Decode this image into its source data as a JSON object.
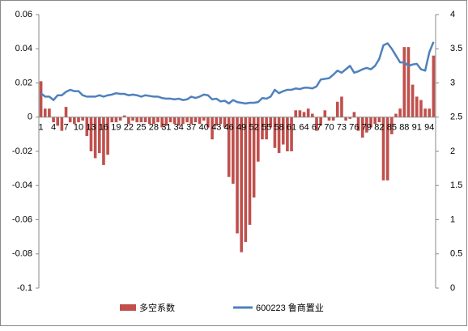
{
  "chart_data": {
    "type": "bar-line",
    "categories": [
      "1",
      null,
      null,
      "4",
      null,
      null,
      "7",
      null,
      null,
      "10",
      null,
      null,
      "13",
      null,
      null,
      "16",
      null,
      null,
      "19",
      null,
      null,
      "22",
      null,
      null,
      "25",
      null,
      null,
      "28",
      null,
      null,
      "31",
      null,
      null,
      "34",
      null,
      null,
      "37",
      null,
      null,
      "40",
      null,
      null,
      "43",
      null,
      null,
      "46",
      null,
      null,
      "49",
      null,
      null,
      "52",
      null,
      null,
      "55",
      null,
      null,
      "58",
      null,
      null,
      "61",
      null,
      null,
      "64",
      null,
      null,
      "67",
      null,
      null,
      "70",
      null,
      null,
      "73",
      null,
      null,
      "76",
      null,
      null,
      "79",
      null,
      null,
      "82",
      null,
      null,
      "85",
      null,
      null,
      "88",
      null,
      null,
      "91",
      null,
      null,
      "94",
      null
    ],
    "series": [
      {
        "name": "多空系数",
        "type": "bar",
        "color": "#c0504d",
        "values": [
          0.021,
          0.005,
          0.005,
          -0.003,
          -0.005,
          -0.008,
          0.006,
          -0.003,
          -0.004,
          -0.003,
          -0.002,
          -0.011,
          -0.02,
          -0.024,
          -0.021,
          -0.028,
          -0.022,
          -0.003,
          -0.003,
          -0.002,
          0.001,
          -0.004,
          -0.002,
          -0.003,
          -0.003,
          -0.003,
          -0.004,
          -0.004,
          -0.003,
          -0.006,
          -0.005,
          -0.003,
          -0.004,
          -0.005,
          -0.004,
          -0.003,
          -0.004,
          -0.003,
          -0.004,
          -0.002,
          -0.006,
          -0.013,
          -0.005,
          -0.004,
          -0.006,
          -0.035,
          -0.039,
          -0.068,
          -0.079,
          -0.073,
          -0.063,
          -0.047,
          -0.026,
          -0.013,
          -0.013,
          -0.006,
          -0.018,
          -0.021,
          -0.016,
          -0.02,
          -0.02,
          0.004,
          0.004,
          0.003,
          0.005,
          0.002,
          -0.008,
          -0.005,
          0.004,
          -0.002,
          -0.002,
          0.009,
          0.012,
          -0.002,
          -0.001,
          0.003,
          -0.008,
          -0.012,
          -0.009,
          -0.006,
          -0.004,
          -0.003,
          -0.037,
          -0.037,
          -0.01,
          0.002,
          0.005,
          0.041,
          0.041,
          0.019,
          0.012,
          0.01,
          0.005,
          0.005,
          0.036
        ]
      },
      {
        "name": "600223 鲁商置业",
        "type": "line",
        "axis": "y2",
        "color": "#4f81bd",
        "values": [
          2.85,
          2.8,
          2.8,
          2.75,
          2.82,
          2.82,
          2.87,
          2.9,
          2.88,
          2.88,
          2.82,
          2.8,
          2.8,
          2.8,
          2.82,
          2.8,
          2.82,
          2.83,
          2.85,
          2.84,
          2.84,
          2.82,
          2.83,
          2.82,
          2.8,
          2.82,
          2.81,
          2.8,
          2.8,
          2.78,
          2.77,
          2.77,
          2.76,
          2.77,
          2.75,
          2.76,
          2.8,
          2.78,
          2.8,
          2.83,
          2.82,
          2.76,
          2.77,
          2.73,
          2.74,
          2.7,
          2.75,
          2.72,
          2.71,
          2.7,
          2.71,
          2.71,
          2.72,
          2.78,
          2.77,
          2.8,
          2.9,
          2.85,
          2.88,
          2.9,
          2.9,
          2.92,
          2.91,
          2.93,
          2.93,
          2.92,
          2.95,
          3.05,
          3.06,
          3.07,
          3.12,
          3.18,
          3.15,
          3.2,
          3.25,
          3.15,
          3.17,
          3.2,
          3.22,
          3.2,
          3.25,
          3.35,
          3.55,
          3.58,
          3.5,
          3.4,
          3.3,
          3.3,
          3.25,
          3.27,
          3.28,
          3.2,
          3.18,
          3.45,
          3.6
        ]
      }
    ],
    "ylim": [
      -0.1,
      0.06
    ],
    "yticks": [
      -0.1,
      -0.08,
      -0.06,
      -0.04,
      -0.02,
      0,
      0.02,
      0.04,
      0.06
    ],
    "y2lim": [
      0,
      4
    ],
    "y2ticks": [
      0,
      0.5,
      1,
      1.5,
      2,
      2.5,
      3,
      3.5,
      4
    ],
    "grid": false,
    "legend": "bottom"
  }
}
